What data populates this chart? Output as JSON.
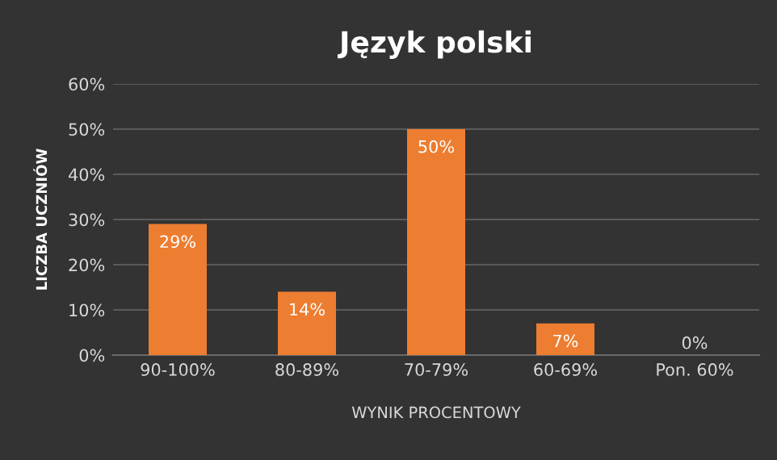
{
  "chart_data": {
    "type": "bar",
    "title": "Język polski",
    "xlabel": "WYNIK PROCENTOWY",
    "ylabel": "LICZBA UCZNIÓW",
    "categories": [
      "90-100%",
      "80-89%",
      "70-79%",
      "60-69%",
      "Pon. 60%"
    ],
    "values": [
      29,
      14,
      50,
      7,
      0
    ],
    "color": "#ed7d31",
    "value_labels": [
      "29%",
      "14%",
      "50%",
      "7%",
      "0%"
    ],
    "ylim": [
      0,
      60
    ],
    "yticks": [
      {
        "value": 0,
        "label": "0%"
      },
      {
        "value": 10,
        "label": "10%"
      },
      {
        "value": 20,
        "label": "20%"
      },
      {
        "value": 30,
        "label": "30%"
      },
      {
        "value": 40,
        "label": "40%"
      },
      {
        "value": 50,
        "label": "50%"
      },
      {
        "value": 60,
        "label": "60%"
      }
    ],
    "grid": "y"
  }
}
